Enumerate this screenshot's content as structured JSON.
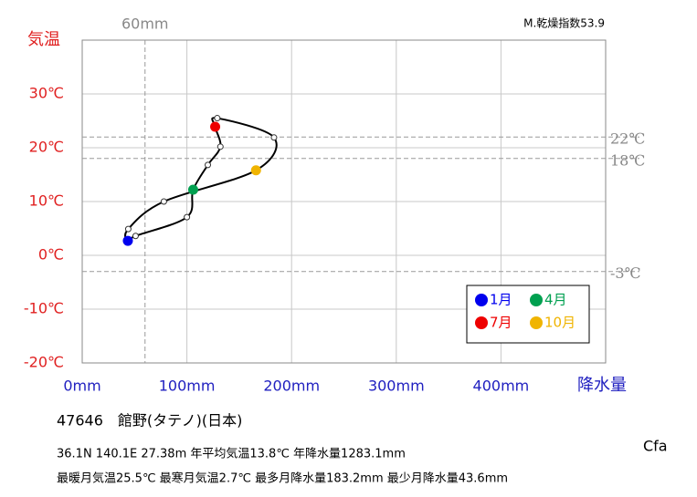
{
  "chart_data": {
    "type": "climograph",
    "corner_note": "M.乾燥指数53.9",
    "y_axis_label": "気温",
    "x_axis_label": "降水量",
    "xlim": [
      0,
      500
    ],
    "ylim": [
      -20,
      40
    ],
    "xticks": [
      {
        "value": 0,
        "label": "0mm"
      },
      {
        "value": 100,
        "label": "100mm"
      },
      {
        "value": 200,
        "label": "200mm"
      },
      {
        "value": 300,
        "label": "300mm"
      },
      {
        "value": 400,
        "label": "400mm"
      }
    ],
    "yticks": [
      {
        "value": 30,
        "label": "30℃"
      },
      {
        "value": 20,
        "label": "20℃"
      },
      {
        "value": 10,
        "label": "10℃"
      },
      {
        "value": 0,
        "label": "0℃"
      },
      {
        "value": -10,
        "label": "-10℃"
      },
      {
        "value": -20,
        "label": "-20℃"
      }
    ],
    "grid": true,
    "reference_lines": [
      {
        "axis": "x",
        "value": 60,
        "label": "60mm"
      },
      {
        "axis": "y",
        "value": 22,
        "label": "22℃"
      },
      {
        "axis": "y",
        "value": 18,
        "label": "18℃"
      },
      {
        "axis": "y",
        "value": -3,
        "label": "-3℃"
      }
    ],
    "x": [
      43.6,
      51,
      100,
      106,
      120,
      132,
      127,
      129,
      183.2,
      166,
      78,
      44
    ],
    "values": [
      2.7,
      3.6,
      7.1,
      12.2,
      16.8,
      20.2,
      23.9,
      25.5,
      21.9,
      15.8,
      10.0,
      4.9
    ],
    "line_color": "#000000",
    "point_colors": [
      "#0000ee",
      "#ffffff",
      "#ffffff",
      "#00a050",
      "#ffffff",
      "#ffffff",
      "#ee0000",
      "#ffffff",
      "#ffffff",
      "#f0b400",
      "#ffffff",
      "#ffffff"
    ],
    "legend": [
      {
        "name": "1月",
        "color": "#0000ee"
      },
      {
        "name": "4月",
        "color": "#00a050"
      },
      {
        "name": "7月",
        "color": "#ee0000"
      },
      {
        "name": "10月",
        "color": "#f0b400"
      }
    ],
    "station": "47646　館野(タテノ)(日本)",
    "info_line_1": "36.1N  140.1E 27.38m  年平均気温13.8℃ 年降水量1283.1mm",
    "info_line_2": "最暖月気温25.5℃ 最寒月気温2.7℃ 最多月降水量183.2mm 最少月降水量43.6mm",
    "climate_class": "Cfa"
  }
}
